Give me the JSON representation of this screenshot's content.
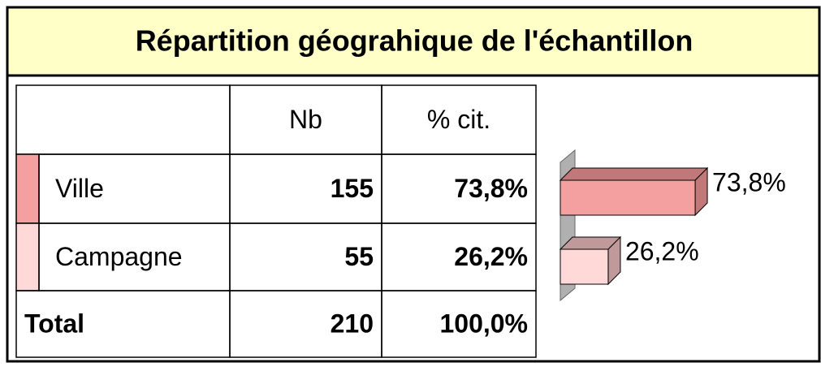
{
  "title": "Répartition géograhique de l'échantillon",
  "table": {
    "header": [
      "Nb",
      "% cit."
    ],
    "rows": [
      [
        "Ville",
        155,
        "73,8%"
      ],
      [
        "Campagne",
        55,
        "26,2%"
      ],
      [
        "Total",
        210,
        "100,0%"
      ]
    ]
  },
  "chart_data": {
    "type": "bar",
    "orientation": "horizontal",
    "categories": [
      "Ville",
      "Campagne"
    ],
    "values": [
      73.8,
      26.2
    ],
    "value_labels": [
      "73,8%",
      "26,2%"
    ],
    "colors": [
      "#f4a0a0",
      "#ffd8d8"
    ],
    "xlim": [
      0,
      100
    ]
  }
}
